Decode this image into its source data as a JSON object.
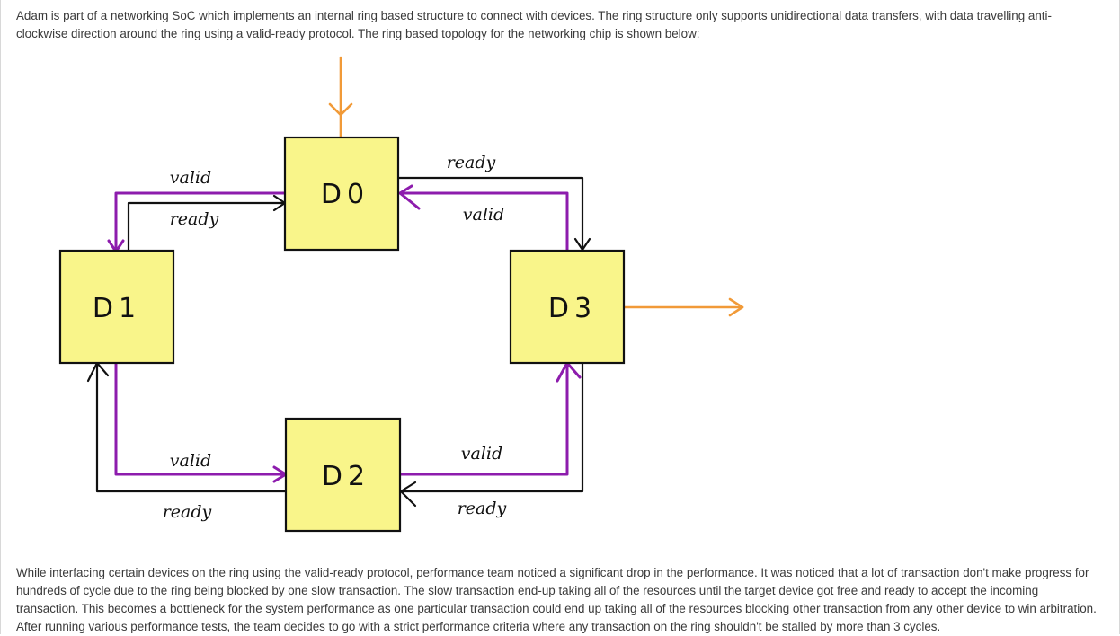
{
  "intro": "Adam is part of a networking SoC which implements an internal ring based structure to connect with devices. The ring structure only supports unidirectional data transfers, with data travelling anti-clockwise direction around the ring using a valid-ready protocol. The ring based topology for the networking chip is shown below:",
  "diagram": {
    "devices": {
      "d0": "D0",
      "d1": "D1",
      "d2": "D2",
      "d3": "D3"
    },
    "signals": {
      "d0_d1_valid": "valid",
      "d0_d1_ready": "ready",
      "d3_d0_ready": "ready",
      "d3_d0_valid": "valid",
      "d1_d2_valid": "valid",
      "d1_d2_ready": "ready",
      "d2_d3_valid": "valid",
      "d2_d3_ready": "ready"
    },
    "colors": {
      "box": "#f9f58a",
      "valid": "#8d1cad",
      "ready": "#111111",
      "io": "#f19a38"
    }
  },
  "outro": "While interfacing certain devices on the ring using the valid-ready protocol, performance team noticed a significant drop in the performance. It was noticed that a lot of transaction don't make progress for hundreds of cycle due to the ring being blocked by one slow transaction. The slow transaction end-up taking all of the resources until the target device got free and ready to accept the incoming transaction. This becomes a bottleneck for the system performance as one particular transaction could end up taking all of the resources blocking other transaction from any other device to win arbitration. After running various performance tests, the team decides to go with a strict performance criteria where any transaction on the ring shouldn't be stalled by more than 3 cycles."
}
